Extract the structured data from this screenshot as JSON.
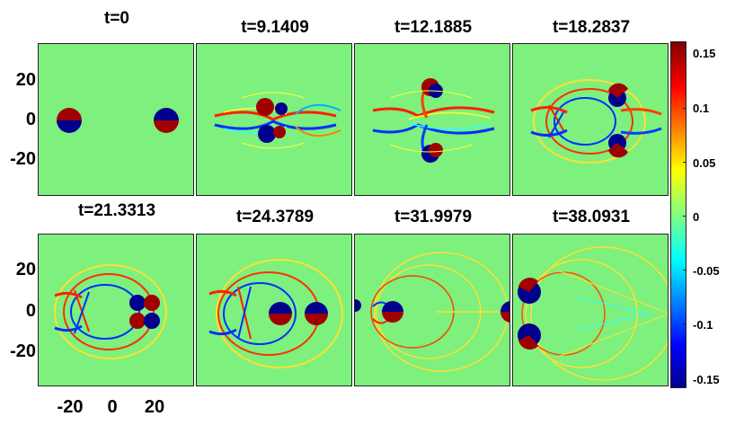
{
  "panels": [
    {
      "title": "t=0"
    },
    {
      "title": "t=9.1409"
    },
    {
      "title": "t=12.1885"
    },
    {
      "title": "t=18.2837"
    },
    {
      "title": "t=21.3313"
    },
    {
      "title": "t=24.3789"
    },
    {
      "title": "t=31.9979"
    },
    {
      "title": "t=38.0931"
    }
  ],
  "y_ticks": [
    "20",
    "0",
    "-20"
  ],
  "x_ticks": [
    "-20",
    "0",
    "20"
  ],
  "colorbar_ticks": [
    "0.15",
    "0.1",
    "0.05",
    "0",
    "-0.05",
    "-0.1",
    "-0.15"
  ],
  "chart_data": {
    "type": "heatmap",
    "subplot_titles": [
      "t=0",
      "t=9.1409",
      "t=12.1885",
      "t=18.2837",
      "t=21.3313",
      "t=24.3789",
      "t=31.9979",
      "t=38.0931"
    ],
    "x_ticks": [
      -20,
      0,
      20
    ],
    "y_ticks": [
      20,
      0,
      -20
    ],
    "colorbar": {
      "min": -0.16,
      "max": 0.16,
      "ticks": [
        0.15,
        0.1,
        0.05,
        0,
        -0.05,
        -0.1,
        -0.15
      ],
      "colormap": "jet"
    },
    "grid": false
  },
  "colors": {
    "background_field": "#7df07d",
    "positive": "#a00000",
    "negative": "#00008f"
  }
}
